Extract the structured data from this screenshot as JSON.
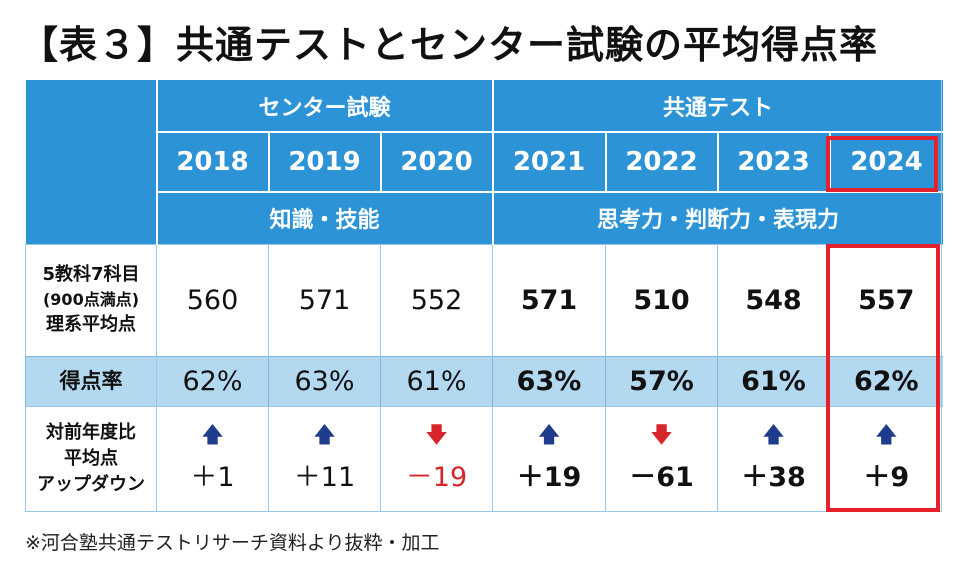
{
  "title": "【表３】共通テストとセンター試験の平均得点率",
  "groups": {
    "center": "センター試験",
    "kyotsu": "共通テスト"
  },
  "abilities": {
    "center": "知識・技能",
    "kyotsu": "思考力・判断力・表現力"
  },
  "years": [
    "2018",
    "2019",
    "2020",
    "2021",
    "2022",
    "2023",
    "2024"
  ],
  "row_labels": {
    "score": [
      "5教科7科目",
      "(900点満点)",
      "理系平均点"
    ],
    "rate": "得点率",
    "updown": [
      "対前年度比",
      "平均点",
      "アップダウン"
    ]
  },
  "scores": [
    "560",
    "571",
    "552",
    "571",
    "510",
    "548",
    "557"
  ],
  "rates": [
    "62%",
    "63%",
    "61%",
    "63%",
    "57%",
    "61%",
    "62%"
  ],
  "updowns": [
    {
      "value": "＋1",
      "direction": "up"
    },
    {
      "value": "＋11",
      "direction": "up"
    },
    {
      "value": "－19",
      "direction": "down"
    },
    {
      "value": "＋19",
      "direction": "up"
    },
    {
      "value": "－61",
      "direction": "down"
    },
    {
      "value": "＋38",
      "direction": "up"
    },
    {
      "value": "＋9",
      "direction": "up"
    }
  ],
  "icons": {
    "up": "up-arrow-icon",
    "down": "down-arrow-icon"
  },
  "colors": {
    "header_blue": "#2b93d6",
    "rate_row": "#b3d9f0",
    "highlight_red": "#e5212d",
    "up_arrow": "#1f3b8c",
    "down_arrow": "#d7262b"
  },
  "footnote": "※河合塾共通テストリサーチ資料より抜粋・加工"
}
